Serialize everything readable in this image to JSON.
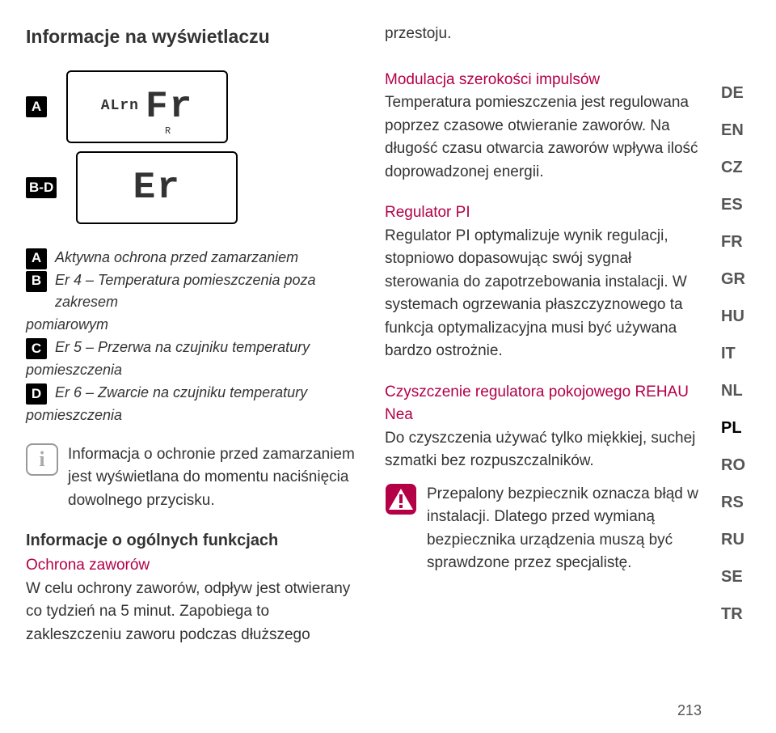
{
  "colors": {
    "accent": "#b30047",
    "text": "#333333",
    "badge_bg": "#000000",
    "badge_fg": "#ffffff",
    "lang_muted": "#555555",
    "info_border": "#999999"
  },
  "page_number": "213",
  "title_left": "Informacje na wyświetlaczu",
  "title_right_first": "przestoju.",
  "display": {
    "row1": {
      "badge": "A",
      "small": "ALrn",
      "main": "Fr",
      "r": "R"
    },
    "row2": {
      "badge": "B-D",
      "main": "Er"
    }
  },
  "legend": {
    "a": {
      "badge": "A",
      "text": "Aktywna ochrona przed zamarzaniem"
    },
    "b": {
      "badge": "B",
      "text": "Er 4 – Temperatura pomieszczenia poza zakresem"
    },
    "b_cont": "pomiarowym",
    "c": {
      "badge": "C",
      "text": "Er 5 – Przerwa na czujniku temperatury"
    },
    "c_cont": "pomieszczenia",
    "d": {
      "badge": "D",
      "text": "Er 6 – Zwarcie na czujniku temperatury"
    },
    "d_cont": "pomieszczenia"
  },
  "info_note": "Informacja o ochronie przed zamarzaniem jest wyświetlana do momentu naciśnięcia dowolnego przycisku.",
  "general_heading": "Informacje o ogólnych funkcjach",
  "valve_heading": "Ochrona zaworów",
  "valve_text": "W celu ochrony zaworów, odpływ jest otwierany co tydzień na 5 minut. Zapobiega to zakleszczeniu zaworu podczas dłuższego",
  "mod_heading": "Modulacja szerokości impulsów",
  "mod_text": "Temperatura pomieszczenia jest regulowana poprzez czasowe otwieranie zaworów. Na długość czasu otwarcia zaworów wpływa ilość doprowadzonej energii.",
  "pi_heading": "Regulator PI",
  "pi_text": "Regulator PI optymalizuje wynik regulacji, stopniowo dopasowując swój sygnał sterowania do zapotrzebowania instalacji. W systemach ogrzewania płaszczyznowego ta funkcja optymalizacyjna musi być używana bardzo ostrożnie.",
  "clean_heading": "Czyszczenie regulatora pokojowego REHAU Nea",
  "clean_text": "Do czyszczenia używać tylko miękkiej, suchej szmatki bez rozpuszczalników.",
  "warn_text": "Przepalony bezpiecznik oznacza błąd w instalacji. Dlatego przed wymianą bezpiecznika urządzenia muszą być sprawdzone przez specjalistę.",
  "languages": [
    "DE",
    "EN",
    "CZ",
    "ES",
    "FR",
    "GR",
    "HU",
    "IT",
    "NL",
    "PL",
    "RO",
    "RS",
    "RU",
    "SE",
    "TR"
  ],
  "active_lang": "PL"
}
